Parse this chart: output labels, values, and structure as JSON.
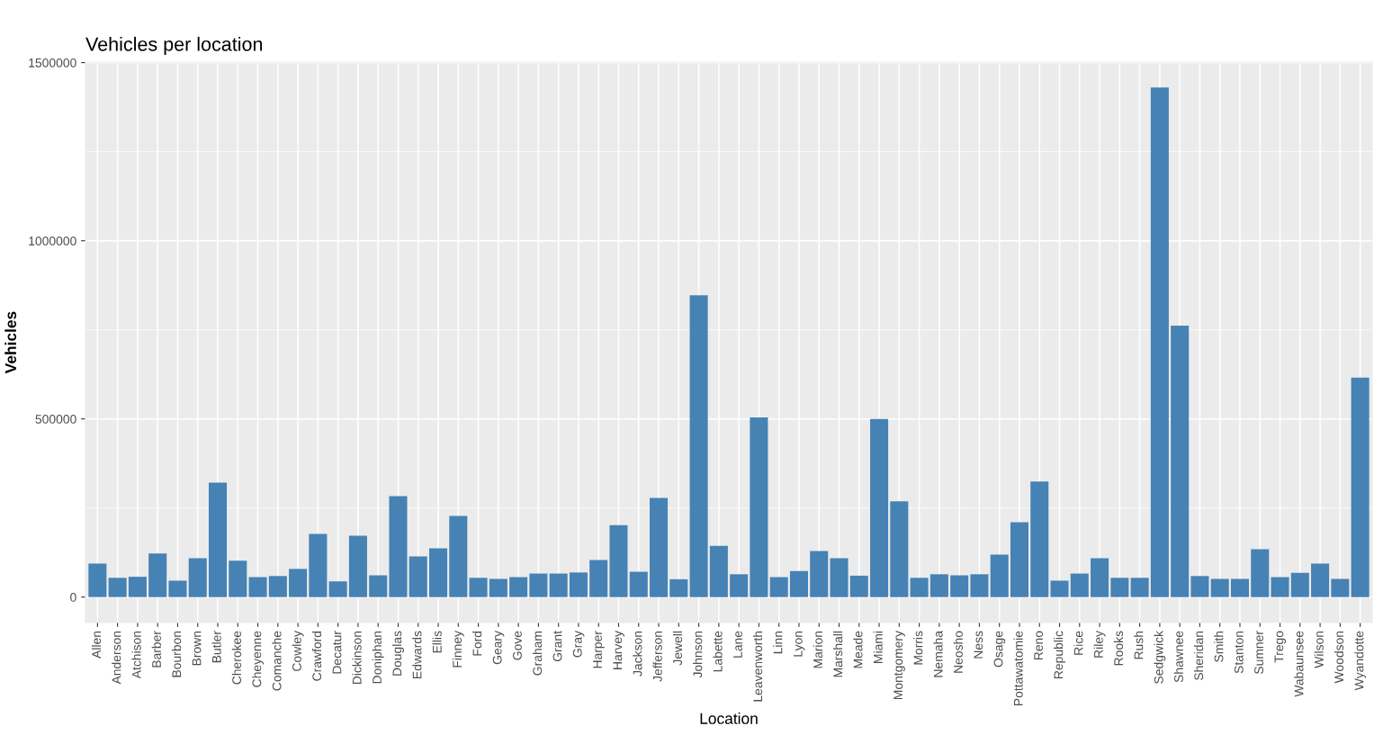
{
  "chart_data": {
    "type": "bar",
    "title": "Vehicles per location",
    "xlabel": "Location",
    "ylabel": "Vehicles",
    "categories": [
      "Allen",
      "Anderson",
      "Atchison",
      "Barber",
      "Bourbon",
      "Brown",
      "Butler",
      "Cherokee",
      "Cheyenne",
      "Comanche",
      "Cowley",
      "Crawford",
      "Decatur",
      "Dickinson",
      "Doniphan",
      "Douglas",
      "Edwards",
      "Ellis",
      "Finney",
      "Ford",
      "Geary",
      "Gove",
      "Graham",
      "Grant",
      "Gray",
      "Harper",
      "Harvey",
      "Jackson",
      "Jefferson",
      "Jewell",
      "Johnson",
      "Labette",
      "Lane",
      "Leavenworth",
      "Linn",
      "Lyon",
      "Marion",
      "Marshall",
      "Meade",
      "Miami",
      "Montgomery",
      "Morris",
      "Nemaha",
      "Neosho",
      "Ness",
      "Osage",
      "Pottawatomie",
      "Reno",
      "Republic",
      "Rice",
      "Riley",
      "Rooks",
      "Rush",
      "Sedgwick",
      "Shawnee",
      "Sheridan",
      "Smith",
      "Stanton",
      "Sumner",
      "Trego",
      "Wabaunsee",
      "Wilson",
      "Woodson",
      "Wyandotte"
    ],
    "values": [
      94000,
      54000,
      57000,
      122000,
      46000,
      109000,
      321000,
      102000,
      56000,
      59000,
      79000,
      177000,
      44000,
      172000,
      61000,
      283000,
      114000,
      137000,
      228000,
      54000,
      51000,
      56000,
      66000,
      66000,
      69000,
      104000,
      202000,
      71000,
      278000,
      50000,
      847000,
      144000,
      64000,
      504000,
      56000,
      73000,
      129000,
      109000,
      60000,
      500000,
      269000,
      54000,
      64000,
      61000,
      64000,
      119000,
      210000,
      324000,
      46000,
      66000,
      109000,
      54000,
      54000,
      1430000,
      762000,
      59000,
      51000,
      51000,
      134000,
      56000,
      68000,
      94000,
      51000,
      616000
    ],
    "color": "#4682b4",
    "ylim": [
      -71500,
      1501500
    ],
    "yticks": [
      0,
      500000,
      1000000,
      1500000
    ],
    "grid": true
  }
}
